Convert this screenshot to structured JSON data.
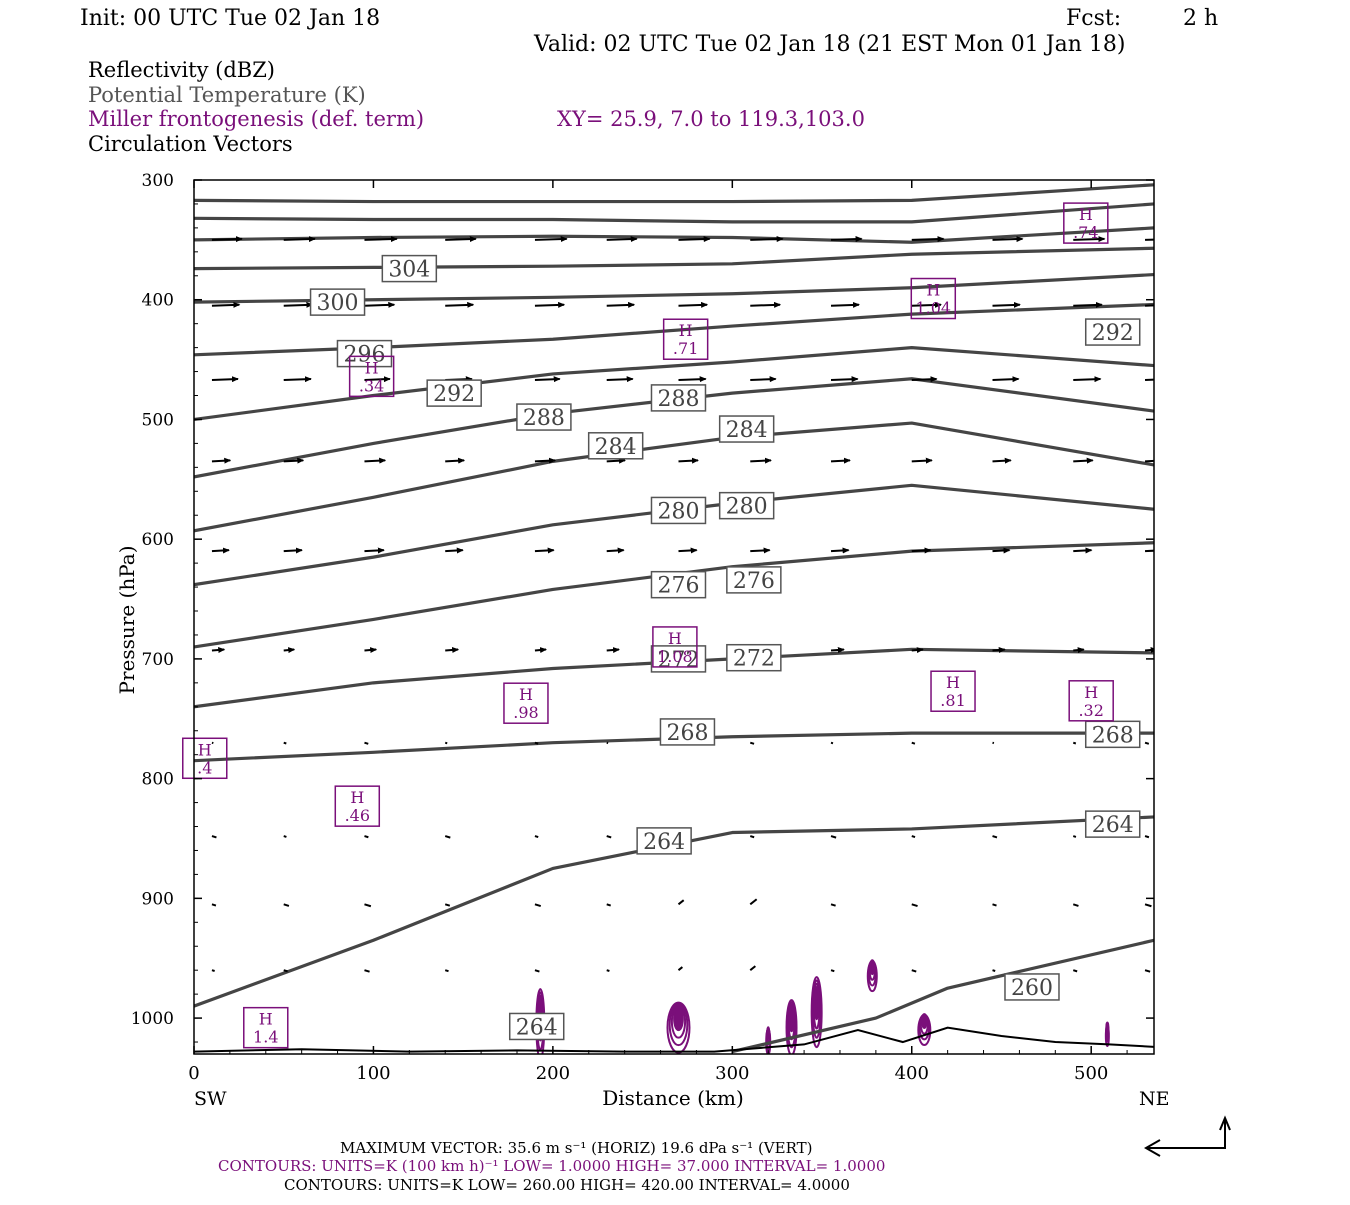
{
  "header": {
    "init": "Init: 00 UTC Tue 02 Jan 18",
    "fcst_label": "Fcst:",
    "fcst_value": "2 h",
    "valid": "Valid: 02 UTC Tue 02 Jan 18 (21 EST Mon 01 Jan 18)"
  },
  "fields": [
    {
      "label": "Reflectivity (dBZ)",
      "color": "#000000"
    },
    {
      "label": "Potential Temperature (K)",
      "color": "#555555"
    },
    {
      "label": "Miller frontogenesis (def. term)",
      "color": "#7a0f7a"
    },
    {
      "label": "Circulation Vectors",
      "color": "#000000"
    }
  ],
  "xy_text": "XY=  25.9,  7.0 to 119.3,103.0",
  "colors": {
    "theta": "#454545",
    "fronto": "#7a0f7a",
    "vector": "#000000",
    "frame": "#000000",
    "label_box": "#555555"
  },
  "chart_data": {
    "type": "vertical-cross-section",
    "xlabel": "Distance (km)",
    "ylabel": "Pressure (hPa)",
    "x_left_label": "SW",
    "x_right_label": "NE",
    "xlim": [
      0,
      535
    ],
    "ylim": [
      1030,
      300
    ],
    "x_ticks": [
      0,
      100,
      200,
      300,
      400,
      500
    ],
    "y_ticks": [
      300,
      400,
      500,
      600,
      700,
      800,
      900,
      1000
    ],
    "theta_contours": [
      {
        "x": [
          0,
          100,
          200,
          300,
          400,
          535
        ],
        "p": [
          317,
          318,
          318,
          318,
          317,
          304
        ]
      },
      {
        "x": [
          0,
          100,
          200,
          300,
          400,
          535
        ],
        "p": [
          332,
          333,
          333,
          335,
          335,
          320
        ]
      },
      {
        "x": [
          0,
          100,
          200,
          300,
          400,
          535
        ],
        "p": [
          350,
          348,
          347,
          348,
          352,
          340
        ]
      },
      {
        "x": [
          0,
          100,
          200,
          300,
          400,
          535
        ],
        "p": [
          374,
          373,
          372,
          370,
          362,
          357
        ]
      },
      {
        "x": [
          0,
          100,
          200,
          300,
          400,
          535
        ],
        "p": [
          402,
          400,
          398,
          395,
          390,
          379
        ]
      },
      {
        "x": [
          0,
          100,
          200,
          300,
          400,
          535
        ],
        "p": [
          446,
          440,
          433,
          422,
          412,
          404
        ]
      },
      {
        "x": [
          0,
          100,
          200,
          300,
          400,
          535
        ],
        "p": [
          500,
          480,
          462,
          452,
          440,
          455
        ]
      },
      {
        "x": [
          0,
          100,
          200,
          300,
          400,
          535
        ],
        "p": [
          548,
          520,
          495,
          478,
          466,
          493
        ]
      },
      {
        "x": [
          0,
          100,
          200,
          300,
          400,
          535
        ],
        "p": [
          593,
          565,
          535,
          515,
          503,
          538
        ]
      },
      {
        "x": [
          0,
          100,
          200,
          300,
          400,
          535
        ],
        "p": [
          638,
          615,
          588,
          570,
          555,
          575
        ]
      },
      {
        "x": [
          0,
          100,
          200,
          300,
          400,
          535
        ],
        "p": [
          690,
          667,
          642,
          623,
          610,
          603
        ]
      },
      {
        "x": [
          0,
          100,
          200,
          300,
          400,
          535
        ],
        "p": [
          740,
          720,
          708,
          700,
          692,
          695
        ]
      },
      {
        "x": [
          0,
          100,
          200,
          300,
          400,
          535
        ],
        "p": [
          785,
          778,
          770,
          765,
          762,
          762
        ]
      },
      {
        "x": [
          0,
          100,
          200,
          300,
          400,
          535
        ],
        "p": [
          990,
          935,
          875,
          845,
          842,
          832
        ]
      },
      {
        "x": [
          300,
          380,
          420,
          535
        ],
        "p": [
          1028,
          1000,
          975,
          935
        ]
      }
    ],
    "theta_labels": [
      {
        "x": 120,
        "p": 374,
        "text": "304"
      },
      {
        "x": 80,
        "p": 402,
        "text": "300"
      },
      {
        "x": 95,
        "p": 445,
        "text": "296"
      },
      {
        "x": 145,
        "p": 478,
        "text": "292"
      },
      {
        "x": 512,
        "p": 427,
        "text": "292"
      },
      {
        "x": 195,
        "p": 498,
        "text": "288"
      },
      {
        "x": 270,
        "p": 482,
        "text": "288"
      },
      {
        "x": 235,
        "p": 522,
        "text": "284"
      },
      {
        "x": 308,
        "p": 508,
        "text": "284"
      },
      {
        "x": 270,
        "p": 576,
        "text": "280"
      },
      {
        "x": 308,
        "p": 572,
        "text": "280"
      },
      {
        "x": 270,
        "p": 638,
        "text": "276"
      },
      {
        "x": 312,
        "p": 634,
        "text": "276"
      },
      {
        "x": 270,
        "p": 700,
        "text": "272"
      },
      {
        "x": 312,
        "p": 699,
        "text": "272"
      },
      {
        "x": 275,
        "p": 761,
        "text": "268"
      },
      {
        "x": 512,
        "p": 763,
        "text": "268"
      },
      {
        "x": 262,
        "p": 852,
        "text": "264"
      },
      {
        "x": 512,
        "p": 838,
        "text": "264"
      },
      {
        "x": 467,
        "p": 974,
        "text": "260"
      },
      {
        "x": 191,
        "p": 1007,
        "text": "264"
      }
    ],
    "fronto_maxima": [
      {
        "x": 497,
        "p": 336,
        "v": ".74"
      },
      {
        "x": 412,
        "p": 399,
        "v": "1.04"
      },
      {
        "x": 274,
        "p": 433,
        "v": ".71"
      },
      {
        "x": 99,
        "p": 464,
        "v": ".34"
      },
      {
        "x": 268,
        "p": 690,
        "v": "1.08"
      },
      {
        "x": 423,
        "p": 727,
        "v": ".81"
      },
      {
        "x": 500,
        "p": 735,
        "v": ".32"
      },
      {
        "x": 185,
        "p": 737,
        "v": ".98"
      },
      {
        "x": 6,
        "p": 783,
        "v": ".4"
      },
      {
        "x": 91,
        "p": 823,
        "v": ".46"
      },
      {
        "x": 40,
        "p": 1008,
        "v": "1.4"
      }
    ],
    "fronto_blobs": [
      {
        "x": 193,
        "p": 1005,
        "w": 8,
        "h": 70
      },
      {
        "x": 270,
        "p": 1008,
        "w": 22,
        "h": 50
      },
      {
        "x": 333,
        "p": 1008,
        "w": 10,
        "h": 55
      },
      {
        "x": 347,
        "p": 995,
        "w": 10,
        "h": 70
      },
      {
        "x": 378,
        "p": 965,
        "w": 9,
        "h": 30
      },
      {
        "x": 407,
        "p": 1010,
        "w": 12,
        "h": 30
      },
      {
        "x": 320,
        "p": 1020,
        "w": 4,
        "h": 25
      },
      {
        "x": 509,
        "p": 1015,
        "w": 3,
        "h": 20
      }
    ],
    "vector_rows": [
      {
        "p": 350,
        "u": 24
      },
      {
        "p": 405,
        "u": 22
      },
      {
        "p": 467,
        "u": 20
      },
      {
        "p": 535,
        "u": 15
      },
      {
        "p": 610,
        "u": 14
      },
      {
        "p": 693,
        "u": 9
      },
      {
        "p": 770,
        "u": 2
      },
      {
        "p": 848,
        "u": 3
      },
      {
        "p": 905,
        "u": 4
      },
      {
        "p": 960,
        "u": 3
      }
    ],
    "max_vector_text": "MAXIMUM VECTOR:  35.6 m s⁻¹ (HORIZ)          19.6 dPa s⁻¹ (VERT)",
    "fronto_contours_text": "CONTOURS:  UNITS=K (100 km h)⁻¹  LOW=   1.0000        HIGH=   37.000        INTERVAL=     1.0000",
    "theta_contours_text": "CONTOURS:  UNITS=K  LOW=   260.00          HIGH=   420.00          INTERVAL=     4.0000"
  }
}
